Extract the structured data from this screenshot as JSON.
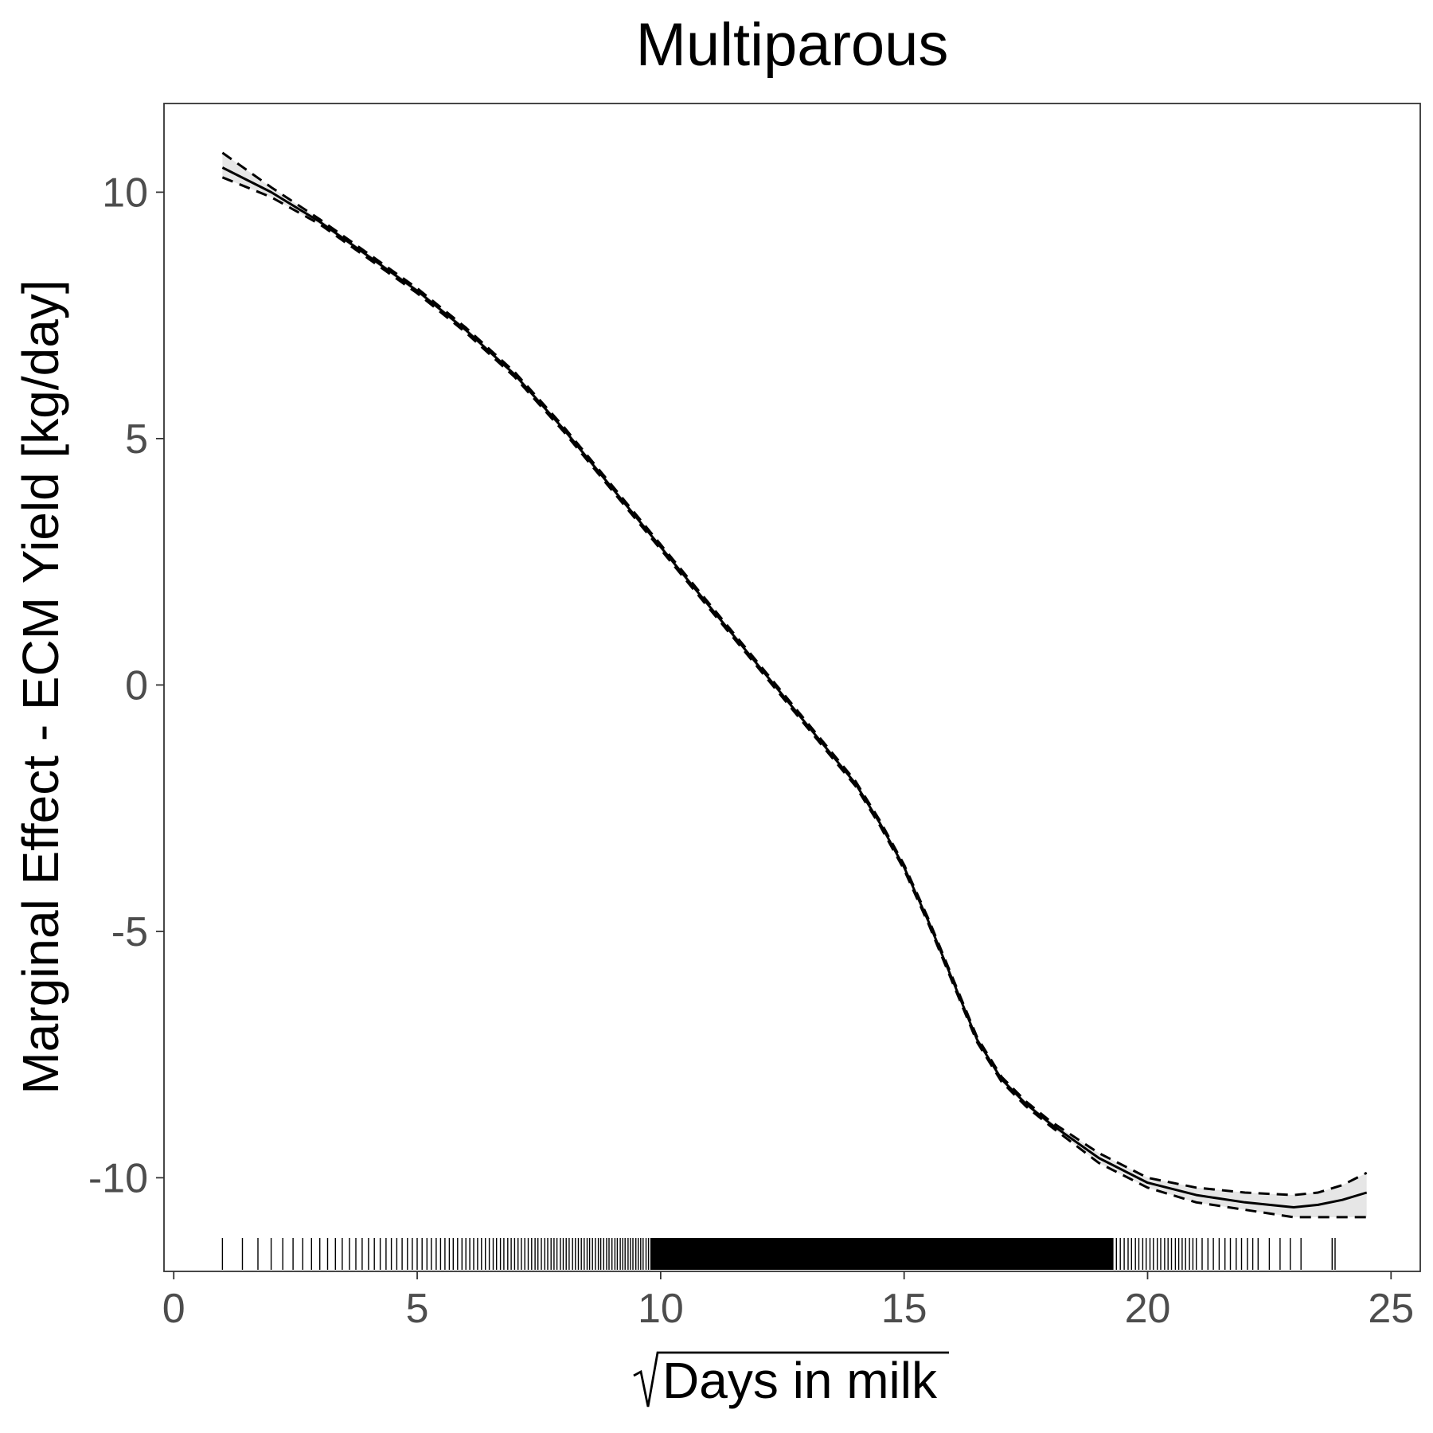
{
  "chart_data": {
    "type": "line",
    "title": "Multiparous",
    "xlabel": "Days in milk",
    "xlabel_prefix": "√",
    "ylabel": "Marginal Effect - ECM Yield [kg/day]",
    "xlim": [
      -0.2,
      25.6
    ],
    "ylim": [
      -11.9,
      11.8
    ],
    "xticks": [
      0,
      5,
      10,
      15,
      20,
      25
    ],
    "xtick_labels": [
      "0",
      "5",
      "10",
      "15",
      "20",
      "25"
    ],
    "yticks": [
      10,
      5,
      0,
      -5,
      -10
    ],
    "ytick_labels": [
      "10",
      "5",
      "0",
      "-5",
      "-10"
    ],
    "grid": false,
    "series": [
      {
        "role": "estimate",
        "style": "solid",
        "x": [
          1,
          2,
          3,
          4,
          5,
          6,
          7,
          8,
          9,
          10,
          11,
          12,
          13,
          14,
          14.5,
          15,
          15.5,
          16,
          16.5,
          17,
          17.5,
          18,
          19,
          20,
          21,
          22,
          23,
          23.5,
          24,
          24.5
        ],
        "y": [
          10.5,
          10.0,
          9.4,
          8.7,
          8.0,
          7.2,
          6.3,
          5.2,
          4.0,
          2.8,
          1.6,
          0.4,
          -0.8,
          -2.0,
          -2.8,
          -3.7,
          -4.8,
          -6.0,
          -7.2,
          -8.0,
          -8.5,
          -8.9,
          -9.6,
          -10.1,
          -10.35,
          -10.5,
          -10.6,
          -10.55,
          -10.45,
          -10.3
        ]
      },
      {
        "role": "upper_bound",
        "style": "dashed",
        "x": [
          1,
          2,
          3,
          4,
          5,
          6,
          7,
          8,
          9,
          10,
          11,
          12,
          13,
          14,
          14.5,
          15,
          15.5,
          16,
          16.5,
          17,
          17.5,
          18,
          19,
          20,
          21,
          22,
          23,
          23.5,
          24,
          24.5
        ],
        "y": [
          10.8,
          10.1,
          9.45,
          8.75,
          8.05,
          7.25,
          6.35,
          5.25,
          4.05,
          2.85,
          1.65,
          0.45,
          -0.75,
          -1.95,
          -2.75,
          -3.65,
          -4.75,
          -5.95,
          -7.15,
          -7.95,
          -8.45,
          -8.85,
          -9.5,
          -10.0,
          -10.2,
          -10.3,
          -10.35,
          -10.3,
          -10.15,
          -9.9
        ]
      },
      {
        "role": "lower_bound",
        "style": "dashed",
        "x": [
          1,
          2,
          3,
          4,
          5,
          6,
          7,
          8,
          9,
          10,
          11,
          12,
          13,
          14,
          14.5,
          15,
          15.5,
          16,
          16.5,
          17,
          17.5,
          18,
          19,
          20,
          21,
          22,
          23,
          23.5,
          24,
          24.5
        ],
        "y": [
          10.3,
          9.9,
          9.35,
          8.65,
          7.95,
          7.15,
          6.25,
          5.15,
          3.95,
          2.75,
          1.55,
          0.35,
          -0.85,
          -2.05,
          -2.85,
          -3.75,
          -4.85,
          -6.05,
          -7.25,
          -8.05,
          -8.55,
          -8.95,
          -9.7,
          -10.2,
          -10.5,
          -10.65,
          -10.8,
          -10.8,
          -10.8,
          -10.8
        ]
      }
    ],
    "rug_x": [
      1.0,
      1.41,
      1.73,
      2.0,
      2.24,
      2.45,
      2.65,
      2.83,
      3.0,
      3.16,
      3.32,
      3.46,
      3.61,
      3.74,
      3.87,
      4.0,
      4.12,
      4.24,
      4.36,
      4.47,
      4.58,
      4.69,
      4.8,
      4.9,
      5.0,
      5.1,
      5.2,
      5.29,
      5.39,
      5.48,
      5.57,
      5.66,
      5.74,
      5.83,
      5.92,
      6.0,
      6.08,
      6.16,
      6.24,
      6.32,
      6.4,
      6.48,
      6.56,
      6.63,
      6.71,
      6.78,
      6.86,
      6.93,
      7.0,
      7.07,
      7.14,
      7.21,
      7.28,
      7.35,
      7.42,
      7.48,
      7.55,
      7.62,
      7.68,
      7.75,
      7.81,
      7.87,
      7.94,
      8.0,
      8.06,
      8.12,
      8.19,
      8.25,
      8.31,
      8.37,
      8.43,
      8.49,
      8.54,
      8.6,
      8.66,
      8.72,
      8.77,
      8.83,
      8.89,
      8.94,
      9.0,
      9.06,
      9.11,
      9.17,
      9.22,
      9.27,
      9.33,
      9.38,
      9.43,
      9.49,
      9.54,
      9.59,
      9.64,
      9.7,
      9.75,
      9.8,
      19.36,
      19.44,
      19.52,
      19.6,
      19.67,
      19.75,
      19.82,
      19.9,
      19.97,
      20.05,
      20.12,
      20.2,
      20.27,
      20.35,
      20.42,
      20.49,
      20.57,
      20.64,
      20.71,
      20.78,
      20.86,
      20.93,
      21.0,
      21.12,
      21.24,
      21.35,
      21.47,
      21.59,
      21.7,
      21.82,
      21.93,
      22.05,
      22.16,
      22.27,
      22.5,
      22.72,
      22.93,
      23.15,
      23.79,
      23.85
    ],
    "rug_band": [
      9.8,
      19.3
    ]
  }
}
